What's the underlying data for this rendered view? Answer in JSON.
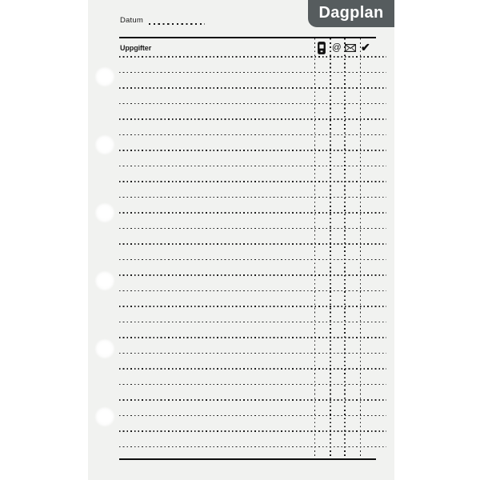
{
  "page": {
    "background_color": "#ffffff",
    "paper_color": "#f1f2f0",
    "ink_color": "#1b1b1b"
  },
  "tab": {
    "label": "Dagplan",
    "background_color": "#565c5e",
    "text_color": "#ffffff"
  },
  "header": {
    "date_label": "Datum"
  },
  "tasks_table": {
    "header_label": "Uppgifter",
    "row_count": 26,
    "columns": [
      {
        "icon": "mobile-phone-icon"
      },
      {
        "icon": "at-icon",
        "glyph": "@"
      },
      {
        "icon": "envelope-icon"
      },
      {
        "icon": "checkmark-icon",
        "glyph": "✔"
      }
    ]
  },
  "binder": {
    "hole_count": 6
  }
}
